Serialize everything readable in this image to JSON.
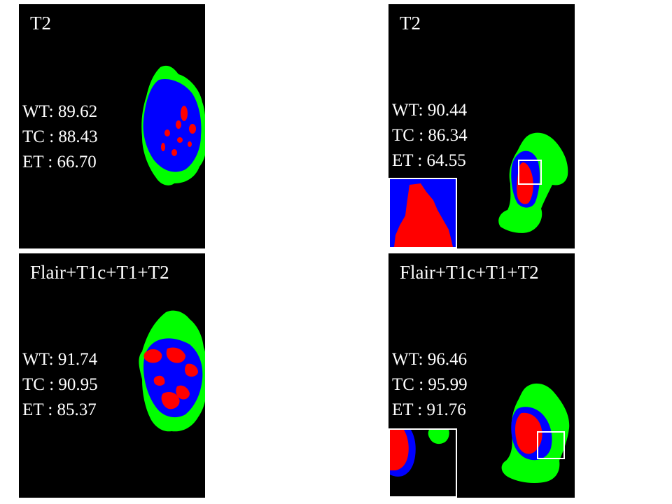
{
  "panels": [
    {
      "title": "T2",
      "metrics": {
        "wt": "WT: 89.62",
        "tc": "TC : 88.43",
        "et": "ET : 66.70"
      }
    },
    {
      "title": "T2",
      "metrics": {
        "wt": "WT: 90.44",
        "tc": "TC : 86.34",
        "et": "ET : 64.55"
      }
    },
    {
      "title": "Flair+T1c+T1+T2",
      "metrics": {
        "wt": "WT: 91.74",
        "tc": "TC : 90.95",
        "et": "ET : 85.37"
      }
    },
    {
      "title": "Flair+T1c+T1+T2",
      "metrics": {
        "wt": "WT: 96.46",
        "tc": "TC : 95.99",
        "et": "ET : 91.76"
      }
    }
  ],
  "colors": {
    "whole_tumor": "#00ff00",
    "tumor_core": "#0000ff",
    "enhancing_tumor": "#ff0000",
    "background": "#000000"
  }
}
